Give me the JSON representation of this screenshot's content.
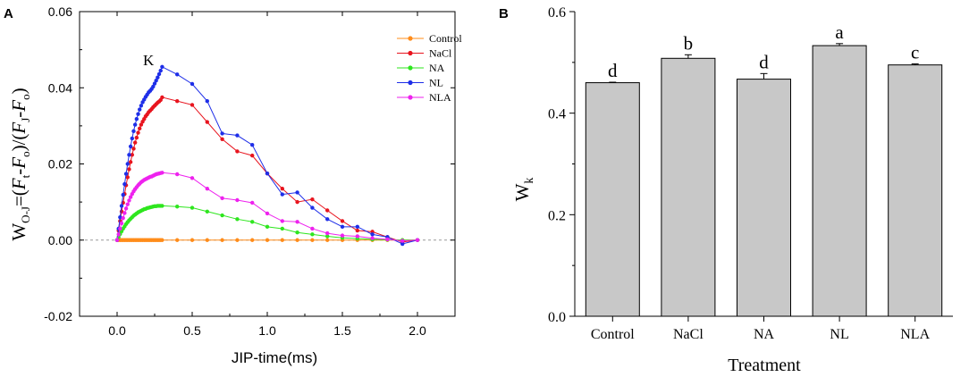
{
  "chart_data": [
    {
      "panel": "A",
      "type": "line",
      "xlabel": "JIP-time(ms)",
      "ylabel": "W_O-J=(F_t-F_o)/(F_J-F_o)",
      "xlim": [
        -0.25,
        2.25
      ],
      "ylim": [
        -0.02,
        0.06
      ],
      "xticks": [
        "0.0",
        "0.5",
        "1.0",
        "1.5",
        "2.0"
      ],
      "yticks": [
        "-0.02",
        "0.00",
        "0.02",
        "0.04",
        "0.06"
      ],
      "annotation": "K",
      "series": [
        {
          "name": "Control",
          "color": "#ff8c1a",
          "x": [
            0.0,
            0.01,
            0.02,
            0.03,
            0.04,
            0.05,
            0.06,
            0.07,
            0.08,
            0.09,
            0.1,
            0.11,
            0.12,
            0.13,
            0.14,
            0.15,
            0.16,
            0.17,
            0.18,
            0.19,
            0.2,
            0.21,
            0.22,
            0.23,
            0.24,
            0.25,
            0.26,
            0.27,
            0.28,
            0.29,
            0.3,
            0.4,
            0.5,
            0.6,
            0.7,
            0.8,
            0.9,
            1.0,
            1.1,
            1.2,
            1.3,
            1.4,
            1.5,
            1.6,
            1.7,
            1.8,
            1.9,
            2.0
          ],
          "y": [
            0,
            0,
            0,
            0,
            0,
            0,
            0,
            0,
            0,
            0,
            0,
            0,
            0,
            0,
            0,
            0,
            0,
            0,
            0,
            0,
            0,
            0,
            0,
            0,
            0,
            0,
            0,
            0,
            0,
            0,
            0,
            0,
            0,
            0,
            0,
            0,
            0,
            0,
            0,
            0,
            0,
            0,
            0,
            0,
            0,
            0,
            0,
            0
          ]
        },
        {
          "name": "NaCl",
          "color": "#e8141e",
          "x": [
            0.0,
            0.01,
            0.02,
            0.03,
            0.04,
            0.05,
            0.06,
            0.07,
            0.08,
            0.09,
            0.1,
            0.11,
            0.12,
            0.13,
            0.14,
            0.15,
            0.16,
            0.17,
            0.18,
            0.19,
            0.2,
            0.21,
            0.22,
            0.23,
            0.24,
            0.25,
            0.26,
            0.27,
            0.28,
            0.29,
            0.3,
            0.4,
            0.5,
            0.6,
            0.7,
            0.8,
            0.9,
            1.0,
            1.1,
            1.2,
            1.3,
            1.4,
            1.5,
            1.6,
            1.7,
            1.8,
            1.9,
            2.0
          ],
          "y": [
            0,
            0.0025,
            0.005,
            0.0075,
            0.0098,
            0.0121,
            0.0144,
            0.0165,
            0.0186,
            0.0205,
            0.0224,
            0.024,
            0.0256,
            0.0269,
            0.0282,
            0.0293,
            0.0303,
            0.0311,
            0.0318,
            0.0325,
            0.033,
            0.0336,
            0.034,
            0.0344,
            0.0349,
            0.0353,
            0.0357,
            0.0361,
            0.0364,
            0.0368,
            0.0375,
            0.0365,
            0.0355,
            0.031,
            0.0265,
            0.0233,
            0.0222,
            0.0175,
            0.0135,
            0.01,
            0.0107,
            0.0078,
            0.005,
            0.0025,
            0.0022,
            0.0008,
            -0.0005,
            0
          ]
        },
        {
          "name": "NA",
          "color": "#2ee61e",
          "x": [
            0.0,
            0.01,
            0.02,
            0.03,
            0.04,
            0.05,
            0.06,
            0.07,
            0.08,
            0.09,
            0.1,
            0.11,
            0.12,
            0.13,
            0.14,
            0.15,
            0.16,
            0.17,
            0.18,
            0.19,
            0.2,
            0.21,
            0.22,
            0.23,
            0.24,
            0.25,
            0.26,
            0.27,
            0.28,
            0.29,
            0.3,
            0.4,
            0.5,
            0.6,
            0.7,
            0.8,
            0.9,
            1.0,
            1.1,
            1.2,
            1.3,
            1.4,
            1.5,
            1.6,
            1.7,
            1.8,
            1.9,
            2.0
          ],
          "y": [
            0,
            0.0008,
            0.0016,
            0.0023,
            0.003,
            0.0036,
            0.0042,
            0.0047,
            0.0052,
            0.0056,
            0.006,
            0.0064,
            0.0067,
            0.007,
            0.0073,
            0.0075,
            0.0077,
            0.0079,
            0.0081,
            0.0082,
            0.0084,
            0.0085,
            0.0086,
            0.0087,
            0.0088,
            0.0089,
            0.0089,
            0.009,
            0.009,
            0.009,
            0.009,
            0.0088,
            0.0085,
            0.0075,
            0.0065,
            0.0055,
            0.0048,
            0.0035,
            0.003,
            0.002,
            0.0015,
            0.001,
            0.0006,
            0.0004,
            0.0002,
            0.0001,
            0,
            0
          ]
        },
        {
          "name": "NL",
          "color": "#1e2ee8",
          "x": [
            0.0,
            0.01,
            0.02,
            0.03,
            0.04,
            0.05,
            0.06,
            0.07,
            0.08,
            0.09,
            0.1,
            0.11,
            0.12,
            0.13,
            0.14,
            0.15,
            0.16,
            0.17,
            0.18,
            0.19,
            0.2,
            0.21,
            0.22,
            0.23,
            0.24,
            0.25,
            0.26,
            0.27,
            0.28,
            0.29,
            0.3,
            0.4,
            0.5,
            0.6,
            0.7,
            0.8,
            0.9,
            1.0,
            1.1,
            1.2,
            1.3,
            1.4,
            1.5,
            1.6,
            1.7,
            1.8,
            1.9,
            2.0
          ],
          "y": [
            0,
            0.003,
            0.006,
            0.009,
            0.0119,
            0.0147,
            0.0174,
            0.02,
            0.0224,
            0.0246,
            0.0267,
            0.0286,
            0.0303,
            0.0318,
            0.0331,
            0.0343,
            0.0353,
            0.0362,
            0.0369,
            0.0376,
            0.0382,
            0.0388,
            0.0392,
            0.0397,
            0.0403,
            0.0411,
            0.0419,
            0.0427,
            0.0436,
            0.0445,
            0.0455,
            0.0435,
            0.041,
            0.0365,
            0.028,
            0.0275,
            0.025,
            0.0175,
            0.012,
            0.0125,
            0.0085,
            0.0055,
            0.0035,
            0.0035,
            0.0015,
            0.0008,
            -0.001,
            0
          ]
        },
        {
          "name": "NLA",
          "color": "#ee22ee",
          "x": [
            0.0,
            0.01,
            0.02,
            0.03,
            0.04,
            0.05,
            0.06,
            0.07,
            0.08,
            0.09,
            0.1,
            0.11,
            0.12,
            0.13,
            0.14,
            0.15,
            0.16,
            0.17,
            0.18,
            0.19,
            0.2,
            0.21,
            0.22,
            0.23,
            0.24,
            0.25,
            0.26,
            0.27,
            0.28,
            0.29,
            0.3,
            0.4,
            0.5,
            0.6,
            0.7,
            0.8,
            0.9,
            1.0,
            1.1,
            1.2,
            1.3,
            1.4,
            1.5,
            1.6,
            1.7,
            1.8,
            1.9,
            2.0
          ],
          "y": [
            0,
            0.0015,
            0.003,
            0.0044,
            0.0058,
            0.0071,
            0.0083,
            0.0094,
            0.0104,
            0.0113,
            0.0121,
            0.0128,
            0.0134,
            0.0139,
            0.0144,
            0.0148,
            0.0152,
            0.0155,
            0.0158,
            0.016,
            0.0162,
            0.0164,
            0.0166,
            0.0167,
            0.0169,
            0.0171,
            0.0173,
            0.0174,
            0.0175,
            0.0176,
            0.0177,
            0.0173,
            0.0163,
            0.0135,
            0.011,
            0.0105,
            0.0098,
            0.007,
            0.005,
            0.0048,
            0.003,
            0.0018,
            0.0012,
            0.001,
            0.0005,
            0.0002,
            -0.0002,
            0
          ]
        }
      ]
    },
    {
      "panel": "B",
      "type": "bar",
      "xlabel": "Treatment",
      "ylabel": "W_k",
      "ylim": [
        0.0,
        0.6
      ],
      "yticks": [
        "0.0",
        "0.2",
        "0.4",
        "0.6"
      ],
      "categories": [
        "Control",
        "NaCl",
        "NA",
        "NL",
        "NLA"
      ],
      "values": [
        0.46,
        0.508,
        0.467,
        0.533,
        0.495
      ],
      "errors": [
        0.001,
        0.007,
        0.011,
        0.004,
        0.002
      ],
      "letters": [
        "d",
        "b",
        "d",
        "a",
        "c"
      ],
      "bar_color": "#c8c8c8"
    }
  ],
  "panels": {
    "a": "A",
    "b": "B"
  },
  "fonts": {
    "sans": "Liberation Sans",
    "serif": "Liberation Serif"
  }
}
